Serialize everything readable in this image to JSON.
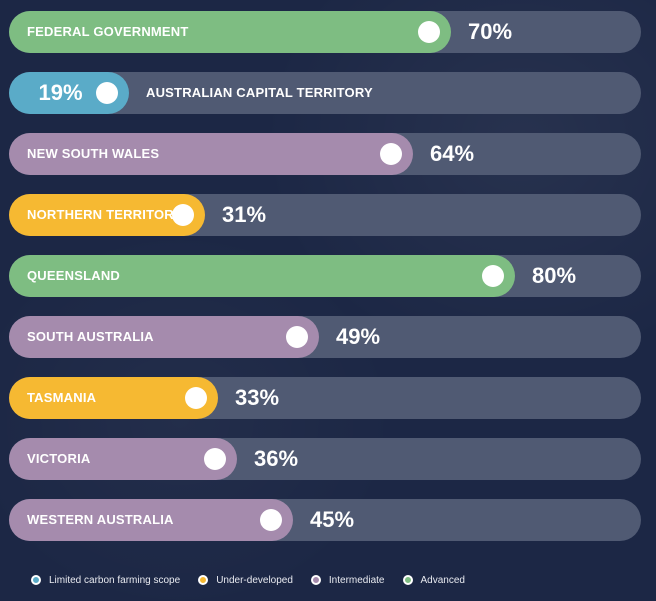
{
  "chart_data": {
    "type": "bar",
    "orientation": "horizontal",
    "categories": [
      "FEDERAL GOVERNMENT",
      "AUSTRALIAN CAPITAL TERRITORY",
      "NEW SOUTH WALES",
      "NORTHERN TERRITORY",
      "QUEENSLAND",
      "SOUTH AUSTRALIA",
      "TASMANIA",
      "VICTORIA",
      "WESTERN AUSTRALIA"
    ],
    "values": [
      70,
      19,
      64,
      31,
      80,
      49,
      33,
      36,
      45
    ],
    "value_labels": [
      "70%",
      "19%",
      "64%",
      "31%",
      "80%",
      "49%",
      "33%",
      "36%",
      "45%"
    ],
    "status": [
      "Advanced",
      "Limited carbon farming scope",
      "Intermediate",
      "Under-developed",
      "Advanced",
      "Intermediate",
      "Under-developed",
      "Intermediate",
      "Intermediate"
    ],
    "xlim": [
      0,
      100
    ],
    "legend": [
      {
        "label": "Limited carbon farming scope",
        "color": "#5aabc8"
      },
      {
        "label": "Under-developed",
        "color": "#f6b932"
      },
      {
        "label": "Intermediate",
        "color": "#a58bad"
      },
      {
        "label": "Advanced",
        "color": "#7ebd82"
      }
    ],
    "legend_position": "bottom"
  },
  "colors": {
    "background": "#1c2745",
    "track": "#505a73",
    "knob": "#ffffff",
    "text": "#ffffff"
  }
}
